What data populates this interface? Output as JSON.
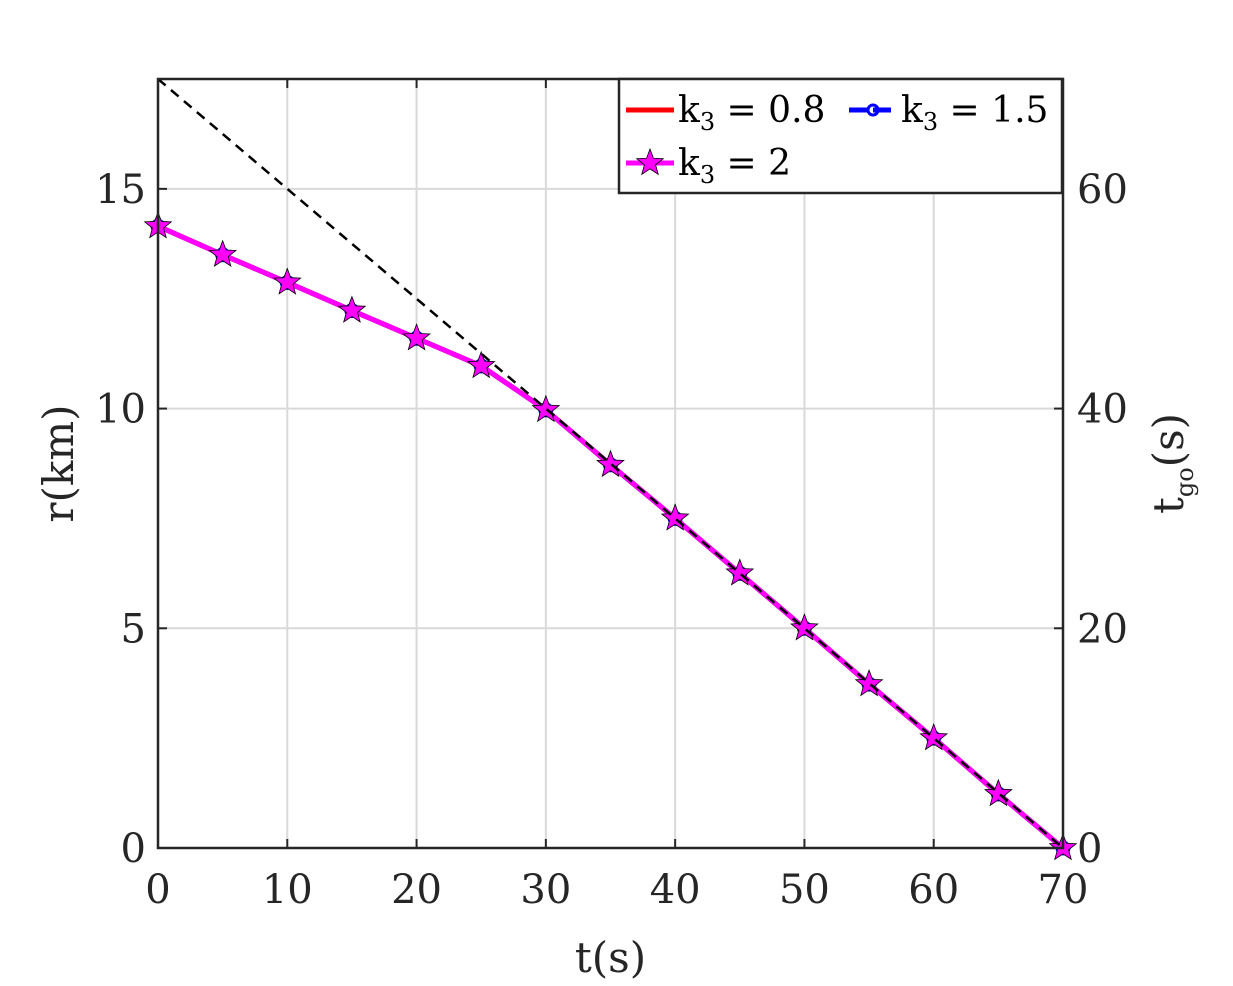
{
  "chart_data": {
    "type": "line",
    "xlabel": "t(s)",
    "ylabel_left": "r(km)",
    "ylabel_right": "t",
    "ylabel_right_sub": "go",
    "ylabel_right_unit": "(s)",
    "xlim": [
      0,
      70
    ],
    "ylim_left": [
      0,
      17.5
    ],
    "ylim_right": [
      0,
      70
    ],
    "xticks": [
      0,
      10,
      20,
      30,
      40,
      50,
      60,
      70
    ],
    "yticks_left": [
      0,
      5,
      10,
      15
    ],
    "yticks_right": [
      0,
      20,
      40,
      60
    ],
    "grid": true,
    "legend_position": "top-right",
    "series": [
      {
        "name": "k3 = 0.8",
        "label_main": "k",
        "label_sub": "3",
        "label_rest": " = 0.8",
        "color": "#ff0000",
        "marker": "none",
        "x": [
          0,
          5,
          10,
          15,
          20,
          25,
          30,
          35,
          40,
          45,
          50,
          55,
          60,
          65,
          70
        ],
        "y": [
          14.15,
          13.5,
          12.87,
          12.23,
          11.6,
          10.97,
          9.97,
          8.72,
          7.5,
          6.25,
          5.0,
          3.73,
          2.5,
          1.23,
          0
        ]
      },
      {
        "name": "k3 = 1.5",
        "label_main": "k",
        "label_sub": "3",
        "label_rest": " = 1.5",
        "color": "#0000ff",
        "marker": "circle",
        "x": [
          0,
          5,
          10,
          15,
          20,
          25,
          30,
          35,
          40,
          45,
          50,
          55,
          60,
          65,
          70
        ],
        "y": [
          14.15,
          13.5,
          12.87,
          12.23,
          11.6,
          10.97,
          9.97,
          8.72,
          7.5,
          6.25,
          5.0,
          3.73,
          2.5,
          1.23,
          0
        ]
      },
      {
        "name": "k3 = 2",
        "label_main": "k",
        "label_sub": "3",
        "label_rest": " = 2",
        "color": "#ff00ff",
        "marker": "star",
        "x": [
          0,
          5,
          10,
          15,
          20,
          25,
          30,
          35,
          40,
          45,
          50,
          55,
          60,
          65,
          70
        ],
        "y": [
          14.15,
          13.5,
          12.87,
          12.23,
          11.6,
          10.97,
          9.97,
          8.72,
          7.5,
          6.25,
          5.0,
          3.73,
          2.5,
          1.23,
          0
        ]
      },
      {
        "color": "#000000",
        "style": "dashed",
        "axis": "right",
        "x": [
          0,
          70
        ],
        "y": [
          70,
          0
        ]
      }
    ]
  }
}
